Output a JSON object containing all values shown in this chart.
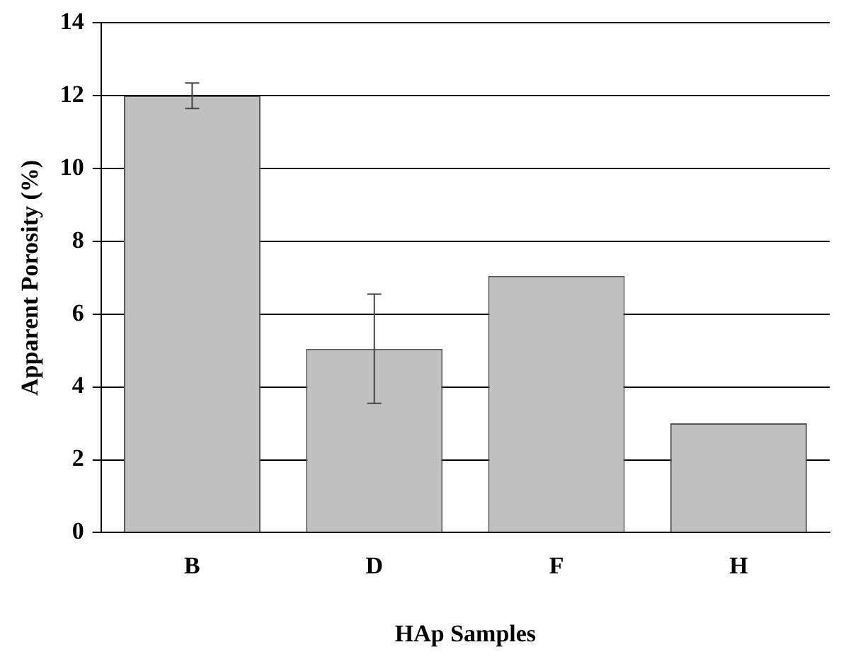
{
  "chart_data": {
    "type": "bar",
    "xlabel": "HAp Samples",
    "ylabel": "Apparent Porosity (%)",
    "categories": [
      "B",
      "D",
      "F",
      "H"
    ],
    "values": [
      12.0,
      5.05,
      7.05,
      3.0
    ],
    "errors": [
      0.35,
      1.5,
      null,
      null
    ],
    "color": "#c0c0c0",
    "ylim": [
      0,
      14
    ],
    "yticks": [
      0,
      2,
      4,
      6,
      8,
      10,
      12,
      14
    ],
    "grid": "y",
    "legend": false
  }
}
